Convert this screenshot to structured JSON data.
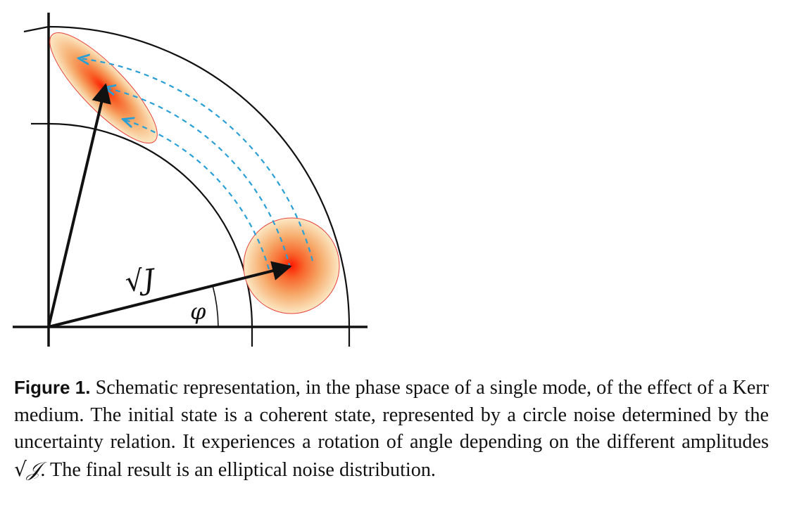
{
  "figure": {
    "amplitude_symbol": "√J",
    "angle_symbol": "φ",
    "colors": {
      "axes": "#111111",
      "arcs": "#111111",
      "trajectories": "#2a9fd6",
      "noise_center": "#ff1a00",
      "noise_edge": "#fff0d0",
      "noise_outline": "#e8403a",
      "vectors": "#111111"
    }
  },
  "caption": {
    "label": "Figure 1.",
    "text_before_math": "Schematic representation, in the phase space of a single mode, of the effect of a Kerr medium. The initial state is a coherent state, represented by a circle noise determined by the uncertainty relation. It experiences a rotation of angle depending on the different amplitudes",
    "math": "√𝒥",
    "text_after_math": ". The final result is an elliptical noise distribution."
  }
}
